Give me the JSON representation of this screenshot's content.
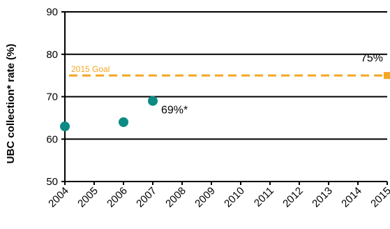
{
  "chart_data": {
    "type": "scatter",
    "ylabel": "UBC collection* rate (%)",
    "xlabel": "",
    "title": "",
    "ylim": [
      50,
      90
    ],
    "yticks": [
      50,
      60,
      70,
      80,
      90
    ],
    "xlim": [
      2004,
      2015
    ],
    "xticks": [
      "2004",
      "2005",
      "2006",
      "2007",
      "2008",
      "2009",
      "2010",
      "2011",
      "2012",
      "2013",
      "2014",
      "2015"
    ],
    "grid": "horizontal",
    "series": [
      {
        "color": "#0e8a84",
        "points": [
          {
            "x": 2004,
            "y": 63
          },
          {
            "x": 2006,
            "y": 64
          },
          {
            "x": 2007,
            "y": 69
          }
        ]
      }
    ],
    "goal": {
      "label": "2015 Goal",
      "value": 75,
      "value_label": "75%",
      "color": "#f5a623",
      "end_x": 2015
    },
    "annotations": [
      {
        "text": "69%*",
        "x": 2007,
        "y": 69
      }
    ]
  }
}
